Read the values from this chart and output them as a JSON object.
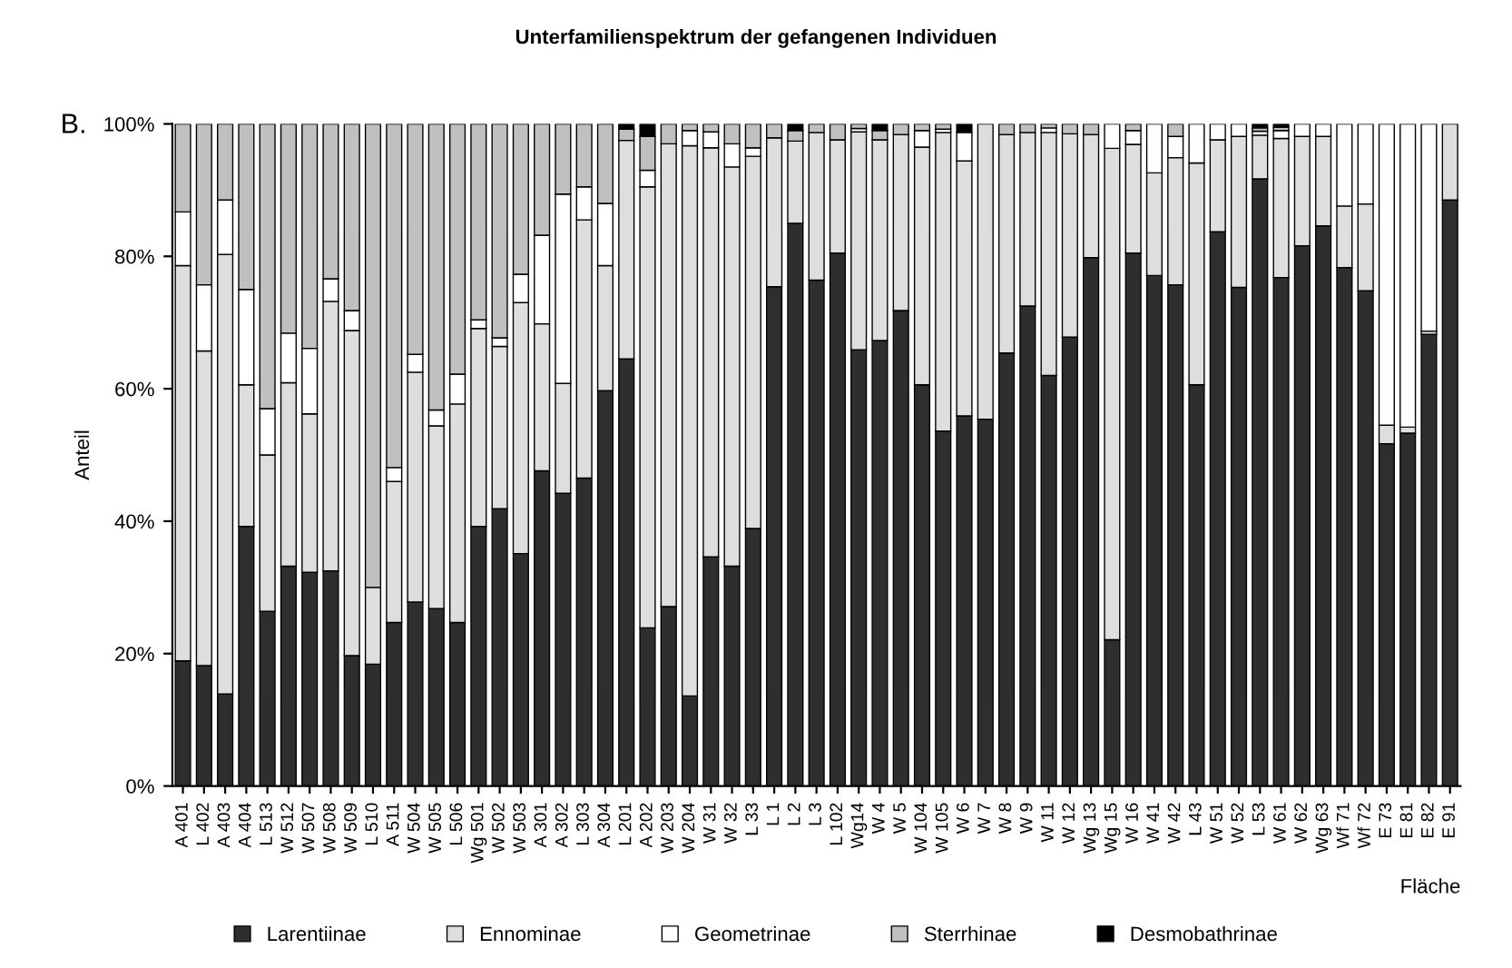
{
  "chart_data": {
    "type": "bar",
    "stacked": true,
    "title": "Unterfamilienspektrum der gefangenen Individuen",
    "xlabel": "Fläche",
    "ylabel": "Anteil",
    "annotations": [
      "B."
    ],
    "categories": [
      "A 401",
      "L 402",
      "A 403",
      "A 404",
      "L 513",
      "W 512",
      "W 507",
      "W 508",
      "W 509",
      "L 510",
      "A 511",
      "W 504",
      "W 505",
      "L 506",
      "Wg 501",
      "W 502",
      "W 503",
      "A 301",
      "A 302",
      "L 303",
      "A 304",
      "L 201",
      "A 202",
      "W 203",
      "W 204",
      "W 31",
      "W 32",
      "L 33",
      "L 1",
      "L 2",
      "L 3",
      "L 102",
      "Wg14",
      "W 4",
      "W 5",
      "W 104",
      "W 105",
      "W 6",
      "W 7",
      "W 8",
      "W 9",
      "W 11",
      "W 12",
      "Wg 13",
      "Wg 15",
      "W 16",
      "W 41",
      "W 42",
      "L 43",
      "W 51",
      "W 52",
      "L 53",
      "W 61",
      "W 62",
      "Wg 63",
      "Wf 71",
      "Wf 72",
      "E 73",
      "E 81",
      "E 82",
      "E 91"
    ],
    "series": [
      {
        "name": "Larentiinae",
        "color": "#2e2e2e",
        "values": [
          18.9,
          18.2,
          13.9,
          39.2,
          26.4,
          33.2,
          32.3,
          32.5,
          19.7,
          18.4,
          24.7,
          27.8,
          26.8,
          24.7,
          39.2,
          41.9,
          35.1,
          47.6,
          44.2,
          46.5,
          59.7,
          64.5,
          23.9,
          27.1,
          13.6,
          34.6,
          33.2,
          38.9,
          75.4,
          85.0,
          76.4,
          80.5,
          65.9,
          67.3,
          71.8,
          60.6,
          53.6,
          55.9,
          55.4,
          65.4,
          72.5,
          62.0,
          67.8,
          79.8,
          22.1,
          80.5,
          77.1,
          75.7,
          60.6,
          83.7,
          75.3,
          91.7,
          76.8,
          81.6,
          84.6,
          78.3,
          74.8,
          51.7,
          53.3,
          68.2,
          88.5
        ]
      },
      {
        "name": "Ennominae",
        "color": "#dedede",
        "values": [
          59.7,
          47.5,
          66.4,
          21.4,
          23.6,
          27.7,
          23.9,
          40.7,
          49.1,
          11.6,
          21.3,
          34.7,
          27.6,
          33.0,
          29.9,
          24.5,
          37.9,
          22.2,
          16.6,
          39.0,
          18.9,
          33.0,
          66.6,
          69.9,
          83.1,
          61.8,
          60.3,
          56.2,
          22.5,
          12.4,
          22.3,
          17.1,
          32.9,
          30.3,
          26.6,
          35.9,
          45.1,
          38.5,
          44.6,
          33.0,
          26.2,
          36.7,
          30.7,
          18.6,
          74.2,
          16.4,
          15.5,
          19.2,
          33.5,
          13.9,
          22.8,
          6.6,
          21.0,
          16.5,
          13.5,
          9.3,
          13.1,
          2.8,
          0.9,
          0.5,
          11.5
        ]
      },
      {
        "name": "Geometrinae",
        "color": "#ffffff",
        "values": [
          8.1,
          10.0,
          8.2,
          14.4,
          7.0,
          7.5,
          9.9,
          3.4,
          3.0,
          0,
          2.1,
          2.7,
          2.4,
          4.5,
          1.3,
          1.3,
          4.3,
          13.4,
          28.6,
          5.0,
          9.4,
          0,
          2.5,
          0,
          2.3,
          2.4,
          3.5,
          1.3,
          0,
          0,
          0,
          0,
          0.5,
          0,
          0,
          2.5,
          0.5,
          4.3,
          0,
          0,
          0,
          0.7,
          0,
          0,
          3.7,
          2.1,
          7.4,
          3.2,
          5.9,
          2.4,
          1.9,
          0.6,
          1.2,
          1.9,
          1.9,
          12.4,
          12.1,
          45.5,
          45.8,
          31.3,
          0
        ]
      },
      {
        "name": "Sterrhinae",
        "color": "#c0c0c0",
        "values": [
          13.3,
          24.3,
          11.5,
          25.0,
          43.0,
          31.6,
          33.9,
          23.4,
          28.2,
          70.0,
          51.9,
          34.8,
          43.2,
          37.8,
          29.6,
          32.3,
          22.7,
          16.8,
          10.6,
          9.5,
          12.0,
          1.7,
          5.1,
          3.0,
          1.0,
          1.2,
          3.0,
          3.6,
          2.1,
          1.6,
          1.3,
          2.4,
          0.7,
          1.4,
          1.6,
          1.0,
          0.8,
          0,
          0,
          1.6,
          1.3,
          0.6,
          1.5,
          1.6,
          0,
          1.0,
          0,
          1.9,
          0,
          0,
          0,
          0.5,
          0.5,
          0,
          0,
          0,
          0,
          0,
          0,
          0,
          0
        ]
      },
      {
        "name": "Desmobathrinae",
        "color": "#000000",
        "values": [
          0,
          0,
          0,
          0,
          0,
          0,
          0,
          0,
          0,
          0,
          0,
          0,
          0,
          0,
          0,
          0,
          0,
          0,
          0,
          0,
          0,
          0.8,
          1.9,
          0,
          0,
          0,
          0,
          0,
          0,
          1.0,
          0,
          0,
          0,
          1.0,
          0,
          0,
          0,
          1.3,
          0,
          0,
          0,
          0,
          0,
          0,
          0,
          0,
          0,
          0,
          0,
          0,
          0,
          0.6,
          0.5,
          0,
          0,
          0,
          0,
          0,
          0,
          0,
          0
        ]
      }
    ],
    "ylim": [
      0,
      100
    ],
    "yticks": [
      {
        "value": 0,
        "label": "0%"
      },
      {
        "value": 20,
        "label": "20%"
      },
      {
        "value": 40,
        "label": "40%"
      },
      {
        "value": 60,
        "label": "60%"
      },
      {
        "value": 80,
        "label": "80%"
      },
      {
        "value": 100,
        "label": "100%"
      }
    ],
    "grid": false,
    "legend": "bottom"
  }
}
